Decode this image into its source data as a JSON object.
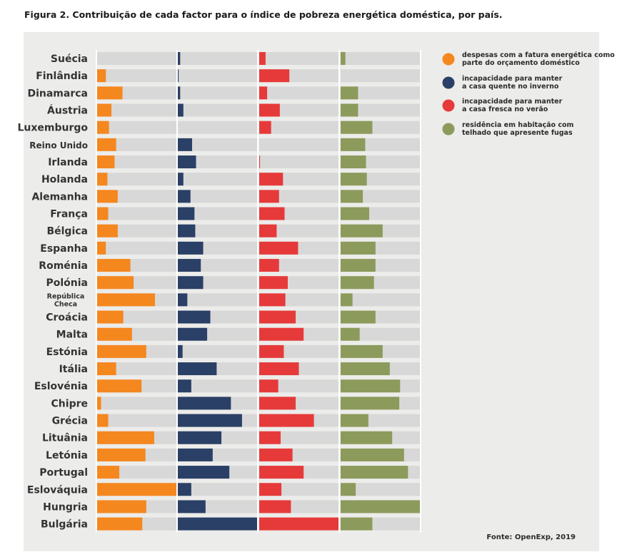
{
  "title": "Figura 2. Contribuição de cada factor para o índice de pobreza energética doméstica, por país.",
  "source": "Fonte: OpenExp, 2019",
  "chart_data": {
    "type": "bar",
    "orientation": "horizontal",
    "layout": "small multiples (four panels)",
    "categories": [
      "Suécia",
      "Finlândia",
      "Dinamarca",
      "Áustria",
      "Luxemburgo",
      "Reino Unido",
      "Irlanda",
      "Holanda",
      "Alemanha",
      "França",
      "Bélgica",
      "Espanha",
      "Roménia",
      "Polónia",
      "República Checa",
      "Croácia",
      "Malta",
      "Estónia",
      "Itália",
      "Eslovénia",
      "Chipre",
      "Grécia",
      "Lituânia",
      "Letónia",
      "Portugal",
      "Eslováquia",
      "Hungria",
      "Bulgária"
    ],
    "series": [
      {
        "name": "despesas com a fatura energética como parte do orçamento doméstico",
        "color": "#f5871f",
        "values": [
          0,
          0.11,
          0.32,
          0.18,
          0.15,
          0.24,
          0.22,
          0.13,
          0.26,
          0.14,
          0.26,
          0.11,
          0.42,
          0.46,
          0.73,
          0.33,
          0.44,
          0.62,
          0.24,
          0.56,
          0.05,
          0.14,
          0.72,
          0.61,
          0.28,
          1.0,
          0.62,
          0.57
        ]
      },
      {
        "name": "incapacidade para manter a casa quente no inverno",
        "color": "#2b4066",
        "values": [
          0.03,
          0.01,
          0.03,
          0.07,
          0,
          0.18,
          0.23,
          0.07,
          0.16,
          0.21,
          0.22,
          0.32,
          0.29,
          0.32,
          0.12,
          0.41,
          0.37,
          0.06,
          0.49,
          0.17,
          0.67,
          0.81,
          0.55,
          0.44,
          0.65,
          0.17,
          0.35,
          1.0
        ]
      },
      {
        "name": "incapacidade para manter a casa fresca no verão",
        "color": "#e63a3a",
        "values": [
          0.08,
          0.38,
          0.1,
          0.26,
          0.15,
          0,
          0.01,
          0.3,
          0.25,
          0.32,
          0.22,
          0.49,
          0.25,
          0.36,
          0.33,
          0.46,
          0.56,
          0.31,
          0.5,
          0.24,
          0.46,
          0.69,
          0.27,
          0.42,
          0.56,
          0.28,
          0.4,
          1.0
        ]
      },
      {
        "name": "residência em habitação com telhado que apresente fugas",
        "color": "#8c9a5b",
        "values": [
          0.06,
          0,
          0.22,
          0.22,
          0.4,
          0.31,
          0.32,
          0.33,
          0.28,
          0.36,
          0.53,
          0.44,
          0.44,
          0.42,
          0.15,
          0.44,
          0.24,
          0.53,
          0.62,
          0.75,
          0.74,
          0.35,
          0.65,
          0.8,
          0.85,
          0.19,
          1.0,
          0.4
        ]
      }
    ],
    "xlim": [
      0,
      1
    ],
    "grid": false,
    "legend_position": "right"
  },
  "colors": {
    "panel_background": "#ececea",
    "bar_track": "#d8d8d8",
    "text": "#333333"
  }
}
